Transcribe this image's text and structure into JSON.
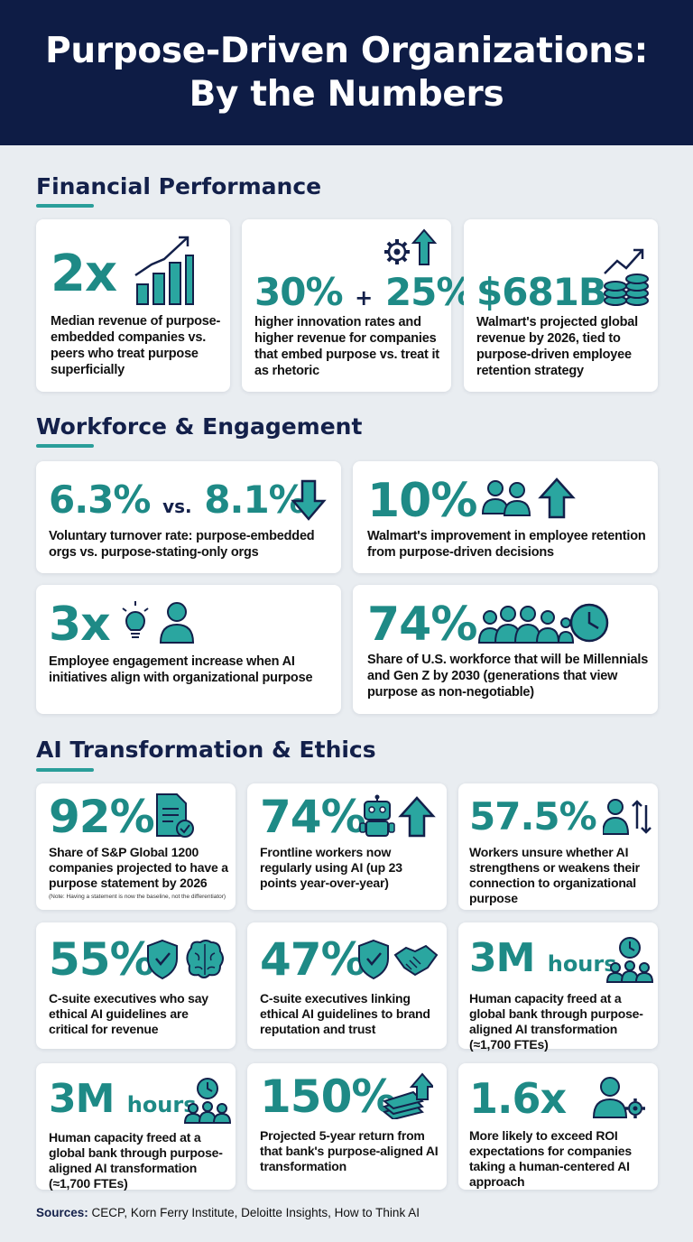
{
  "header": {
    "title_line1": "Purpose-Driven Organizations:",
    "title_line2": "By the Numbers"
  },
  "sections": {
    "financial": "Financial Performance",
    "workforce": "Workforce & Engagement",
    "ai": "AI Transformation & Ethics"
  },
  "financial": {
    "revenue": {
      "stat": "2x",
      "desc": "Median revenue of purpose-embedded companies vs. peers who treat purpose superficially",
      "icon": "bar-chart-growth-icon"
    },
    "innovation": {
      "stat_a": "30%",
      "plus": "+",
      "stat_b": "25%",
      "desc": "higher innovation rates and higher revenue for companies that embed purpose vs. treat it as rhetoric",
      "icon": "gear-arrow-up-icon"
    },
    "walmart": {
      "stat": "$681B",
      "desc": "Walmart's projected global revenue by 2026, tied to purpose-driven employee retention strategy",
      "icon": "coins-growth-icon"
    }
  },
  "workforce": {
    "turnover": {
      "stat_a": "6.3%",
      "vs": "vs.",
      "stat_b": "8.1%",
      "desc": "Voluntary turnover rate: purpose-embedded orgs vs. purpose-stating-only orgs",
      "icon": "arrow-down-icon"
    },
    "retention": {
      "stat": "10%",
      "desc": "Walmart's improvement in employee retention from purpose-driven decisions",
      "icon": "people-arrow-up-icon"
    },
    "engagement": {
      "stat": "3x",
      "desc": "Employee engagement increase when AI initiatives align with organizational purpose",
      "icon": "lightbulb-person-icon"
    },
    "millennials": {
      "stat": "74%",
      "desc": "Share of U.S. workforce that will be Millennials and Gen Z by 2030 (generations that view purpose as non-negotiable)",
      "icon": "group-clock-icon"
    }
  },
  "ai": {
    "purpose_statement": {
      "stat": "92%",
      "desc": "Share of S&P Global 1200 companies projected to have a purpose statement by 2026",
      "note": "(Note: Having a statement is now the baseline, not the differentiator)",
      "icon": "document-check-icon"
    },
    "frontline": {
      "stat": "74%",
      "desc": "Frontline workers now regularly using AI (up 23 points year-over-year)",
      "icon": "robot-arrow-up-icon"
    },
    "unsure": {
      "stat": "57.5%",
      "desc": "Workers unsure whether AI strengthens or weakens their connection to organizational purpose",
      "icon": "person-updown-icon"
    },
    "revenue_guidelines": {
      "stat": "55%",
      "desc": "C-suite executives who say ethical AI guidelines are critical for revenue",
      "icon": "shield-brain-icon"
    },
    "brand": {
      "stat": "47%",
      "desc": "C-suite executives linking ethical AI guidelines to brand reputation and trust",
      "icon": "shield-handshake-icon"
    },
    "capacity1": {
      "stat": "3M",
      "unit": "hours",
      "desc": "Human capacity freed at a global bank through purpose-aligned AI transformation (≈1,700 FTEs)",
      "icon": "clock-team-icon"
    },
    "capacity2": {
      "stat": "3M",
      "unit": "hours",
      "desc": "Human capacity freed at a global bank through purpose-aligned AI transformation (≈1,700 FTEs)",
      "icon": "clock-team-icon"
    },
    "return": {
      "stat": "150%",
      "desc": "Projected 5-year return from that bank's purpose-aligned AI transformation",
      "icon": "money-arrow-up-icon"
    },
    "roi": {
      "stat": "1.6x",
      "desc": "More likely to exceed ROI expectations for companies taking a human-centered AI approach",
      "icon": "person-gear-icon"
    }
  },
  "footer": {
    "label": "Sources:",
    "text": "CECP, Korn Ferry Institute, Deloitte Insights, How to Think AI"
  },
  "colors": {
    "navy": "#0e1c45",
    "teal": "#1e8a86",
    "background": "#e9edf1",
    "card": "#ffffff"
  }
}
